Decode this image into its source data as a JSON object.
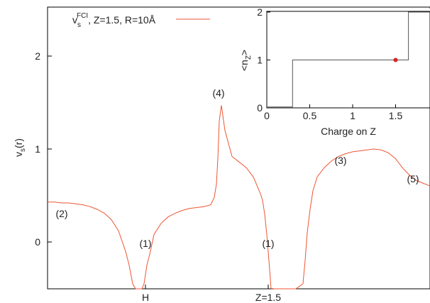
{
  "chart_data": [
    {
      "type": "line",
      "series": [
        {
          "name_main": "v",
          "name_sub": "s",
          "name_sup": "FCI",
          "name_rest": ", Z=1.5, R=10Å",
          "color": "#ee5533",
          "x": [
            0,
            10,
            20,
            30,
            40,
            50,
            60,
            70,
            80,
            90,
            100,
            110,
            115,
            120,
            124,
            127,
            130,
            133,
            136,
            140,
            145,
            150,
            160,
            170,
            180,
            190,
            200,
            210,
            220,
            230,
            235,
            238,
            240,
            242,
            245,
            250,
            260,
            270,
            280,
            290,
            300,
            303,
            306,
            309,
            312,
            315,
            320,
            330,
            340,
            350,
            360,
            363,
            366,
            370,
            374,
            380,
            390,
            400,
            410,
            420,
            430,
            440,
            450,
            460,
            470,
            480,
            490,
            500,
            510,
            520,
            530,
            540,
            550,
            560
          ],
          "y": [
            0.43,
            0.43,
            0.42,
            0.42,
            0.41,
            0.4,
            0.38,
            0.35,
            0.31,
            0.24,
            0.12,
            -0.1,
            -0.25,
            -0.45,
            -0.9,
            -1.6,
            -1.6,
            -0.9,
            -0.45,
            -0.25,
            -0.1,
            0.08,
            0.2,
            0.27,
            0.31,
            0.34,
            0.36,
            0.37,
            0.38,
            0.4,
            0.48,
            0.62,
            0.9,
            1.3,
            1.47,
            1.2,
            0.92,
            0.86,
            0.8,
            0.7,
            0.52,
            0.45,
            0.3,
            0.08,
            -0.2,
            -0.5,
            -0.8,
            -1.6,
            -1.6,
            -0.8,
            -0.45,
            -0.2,
            0.1,
            0.35,
            0.55,
            0.7,
            0.8,
            0.87,
            0.92,
            0.95,
            0.97,
            0.98,
            0.99,
            1.0,
            0.99,
            0.96,
            0.9,
            0.8,
            0.72,
            0.66,
            0.63,
            0.6,
            0.59,
            0.59
          ]
        }
      ],
      "ylabel_main": "v",
      "ylabel_sub": "s",
      "ylabel_rest": "(r)",
      "yticks": [
        "0",
        "1",
        "2"
      ],
      "ylim": [
        -0.5,
        2.5
      ],
      "xticks": [
        "H",
        "Z=1.5"
      ],
      "annotations": [
        "(1)",
        "(1)",
        "(2)",
        "(3)",
        "(4)",
        "(5)"
      ],
      "grid": false,
      "legend": "top-left"
    },
    {
      "type": "line",
      "xlabel": "Charge on Z",
      "ylabel_main": "<n",
      "ylabel_sub": "Z",
      "ylabel_rest": ">",
      "xticks": [
        "0",
        "0.5",
        "1",
        "1.5"
      ],
      "yticks": [
        "0",
        "1",
        "2"
      ],
      "xlim": [
        0,
        1.9
      ],
      "ylim": [
        0,
        2
      ],
      "step_x": [
        0,
        0.3,
        0.3,
        1.65,
        1.65,
        1.9
      ],
      "step_y": [
        0.02,
        0.02,
        1,
        1,
        2,
        2
      ],
      "marker": {
        "x": 1.5,
        "y": 1,
        "color": "#dd2222"
      },
      "line_color": "#555555"
    }
  ]
}
